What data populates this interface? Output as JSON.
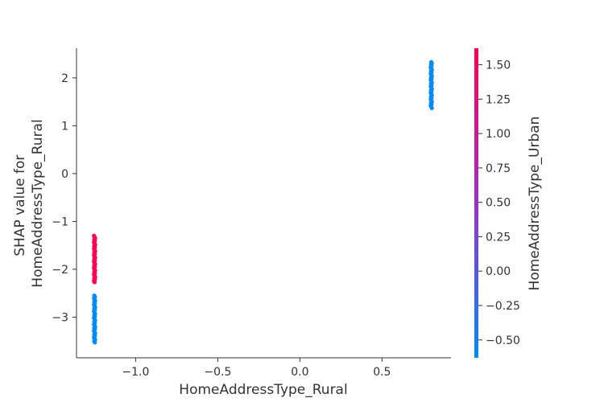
{
  "chart_data": {
    "type": "scatter",
    "title": "",
    "xlabel": "HomeAddressType_Rural",
    "ylabel_lines": [
      "SHAP value for",
      "HomeAddressType_Rural"
    ],
    "xlim": [
      -1.36,
      0.92
    ],
    "ylim": [
      -3.85,
      2.62
    ],
    "xticks": [
      -1.0,
      -0.5,
      0.0,
      0.5
    ],
    "xtick_labels": [
      "−1.0",
      "−0.5",
      "0.0",
      "0.5"
    ],
    "yticks": [
      -3,
      -2,
      -1,
      0,
      1,
      2
    ],
    "ytick_labels": [
      "−3",
      "−2",
      "−1",
      "0",
      "1",
      "2"
    ],
    "grid": false,
    "colorbar": {
      "label": "HomeAddressType_Urban",
      "range": [
        -0.63,
        1.62
      ],
      "ticks": [
        -0.5,
        -0.25,
        0.0,
        0.25,
        0.5,
        0.75,
        1.0,
        1.25,
        1.5
      ],
      "tick_labels": [
        "−0.50",
        "−0.25",
        "0.00",
        "0.25",
        "0.50",
        "0.75",
        "1.00",
        "1.25",
        "1.50"
      ],
      "color_low": "#008bfb",
      "color_mid": "#9b30c8",
      "color_high": "#ff0052"
    },
    "clusters": [
      {
        "x": -1.25,
        "y_min": -2.27,
        "y_max": -1.3,
        "color_value": 1.59,
        "color": "#ff0052"
      },
      {
        "x": -1.25,
        "y_min": -3.53,
        "y_max": -2.55,
        "color_value": -0.63,
        "color": "#008bfb"
      },
      {
        "x": 0.8,
        "y_min": 1.37,
        "y_max": 2.33,
        "color_value": -0.63,
        "color": "#008bfb"
      }
    ]
  }
}
